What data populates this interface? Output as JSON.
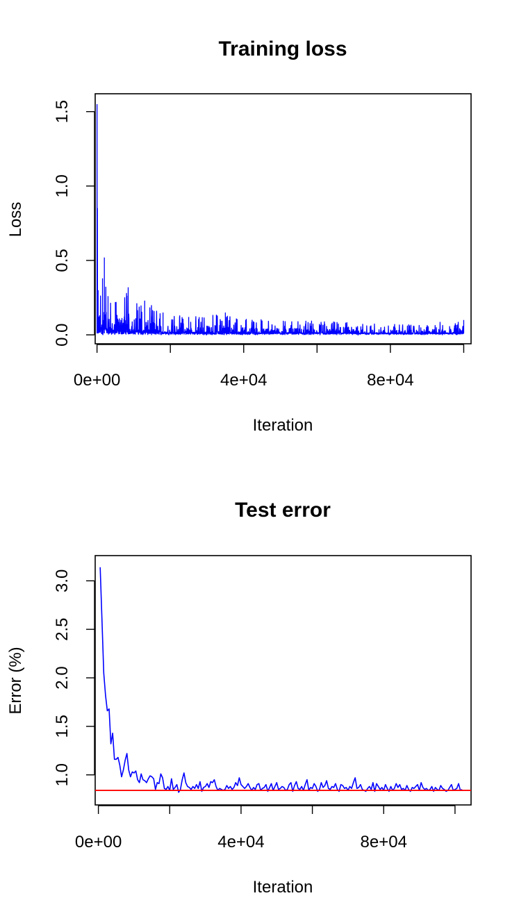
{
  "chart_data": [
    {
      "type": "line",
      "title": "Training loss",
      "xlabel": "Iteration",
      "ylabel": "Loss",
      "xlim": [
        -500,
        102000
      ],
      "ylim": [
        -0.06,
        1.62
      ],
      "x_ticks": [
        0,
        20000,
        40000,
        60000,
        80000,
        100000
      ],
      "x_tick_labels": [
        "0e+00",
        "",
        "4e+04",
        "",
        "8e+04",
        ""
      ],
      "y_ticks": [
        0.0,
        0.5,
        1.0,
        1.5
      ],
      "y_tick_labels": [
        "0.0",
        "0.5",
        "1.0",
        "1.5"
      ],
      "series": [
        {
          "color": "#0000ff",
          "x_start": 0,
          "x_end": 100000,
          "point_count": 2000,
          "peaks": [
            {
              "x": 0,
              "y": 1.55
            },
            {
              "x": 100,
              "y": 0.85
            },
            {
              "x": 300,
              "y": 0.3
            },
            {
              "x": 1500,
              "y": 0.38
            },
            {
              "x": 2000,
              "y": 0.52
            },
            {
              "x": 3000,
              "y": 0.26
            },
            {
              "x": 5000,
              "y": 0.22
            },
            {
              "x": 8500,
              "y": 0.32
            },
            {
              "x": 13000,
              "y": 0.23
            },
            {
              "x": 18000,
              "y": 0.15
            },
            {
              "x": 25000,
              "y": 0.12
            },
            {
              "x": 35000,
              "y": 0.15
            },
            {
              "x": 38000,
              "y": 0.11
            },
            {
              "x": 62000,
              "y": 0.09
            },
            {
              "x": 85000,
              "y": 0.07
            },
            {
              "x": 100000,
              "y": 0.1
            }
          ]
        }
      ],
      "grid": false,
      "legend": "none"
    },
    {
      "type": "line",
      "title": "Test error",
      "xlabel": "Iteration",
      "ylabel": "Error (%)",
      "xlim": [
        -900,
        104500
      ],
      "ylim": [
        0.69,
        3.26
      ],
      "x_ticks": [
        0,
        20000,
        40000,
        60000,
        80000,
        100000
      ],
      "x_tick_labels": [
        "0e+00",
        "",
        "4e+04",
        "",
        "8e+04",
        ""
      ],
      "y_ticks": [
        1.0,
        1.5,
        2.0,
        2.5,
        3.0
      ],
      "y_tick_labels": [
        "1.0",
        "1.5",
        "2.0",
        "2.5",
        "3.0"
      ],
      "series": [
        {
          "color": "#0000ff",
          "x_step": 500,
          "values": [
            3.14,
            2.6,
            2.05,
            1.82,
            1.66,
            1.68,
            1.32,
            1.43,
            1.16,
            1.16,
            1.18,
            1.1,
            0.98,
            1.05,
            1.15,
            1.22,
            1.05,
            0.98,
            1.03,
            1.02,
            1.04,
            0.95,
            0.92,
            1.01,
            0.95,
            0.94,
            0.92,
            0.96,
            0.99,
            0.98,
            0.96,
            0.85,
            0.92,
            0.91,
            1.01,
            0.97,
            0.86,
            0.85,
            0.88,
            0.84,
            0.96,
            0.85,
            0.87,
            0.9,
            0.82,
            0.85,
            0.95,
            1.02,
            0.92,
            0.88,
            0.87,
            0.85,
            0.88,
            0.86,
            0.9,
            0.86,
            0.93,
            0.83,
            0.87,
            0.88,
            0.91,
            0.87,
            0.93,
            0.92,
            0.95,
            0.88,
            0.84,
            0.86,
            0.85,
            0.84,
            0.85,
            0.89,
            0.86,
            0.88,
            0.85,
            0.87,
            0.92,
            0.89,
            0.97,
            0.9,
            0.88,
            0.86,
            0.88,
            0.91,
            0.87,
            0.84,
            0.87,
            0.85,
            0.9,
            0.91,
            0.84,
            0.86,
            0.87,
            0.9,
            0.83,
            0.87,
            0.91,
            0.84,
            0.88,
            0.92,
            0.85,
            0.86,
            0.88,
            0.87,
            0.84,
            0.85,
            0.9,
            0.92,
            0.83,
            0.89,
            0.93,
            0.86,
            0.85,
            0.88,
            0.84,
            0.9,
            0.95,
            0.84,
            0.87,
            0.86,
            0.91,
            0.88,
            0.83,
            0.85,
            0.92,
            0.87,
            0.89,
            0.94,
            0.86,
            0.85,
            0.88,
            0.87,
            0.91,
            0.85,
            0.83,
            0.9,
            0.89,
            0.86,
            0.87,
            0.84,
            0.88,
            0.86,
            0.92,
            0.97,
            0.86,
            0.87,
            0.9,
            0.85,
            0.84,
            0.83,
            0.86,
            0.88,
            0.85,
            0.92,
            0.83,
            0.91,
            0.88,
            0.85,
            0.87,
            0.84,
            0.9,
            0.86,
            0.83,
            0.88,
            0.84,
            0.86,
            0.91,
            0.87,
            0.9,
            0.85,
            0.86,
            0.84,
            0.89,
            0.85,
            0.83,
            0.87,
            0.86,
            0.88,
            0.9,
            0.84,
            0.92,
            0.87,
            0.85,
            0.86,
            0.84,
            0.85,
            0.88,
            0.83,
            0.87,
            0.85,
            0.84,
            0.89,
            0.86,
            0.85,
            0.83,
            0.84,
            0.87,
            0.9,
            0.84,
            0.85,
            0.86,
            0.91,
            0.84,
            0.85
          ],
          "x_start": 500
        },
        {
          "color": "#ff0000",
          "hline": 0.84
        }
      ],
      "grid": false,
      "legend": "none"
    }
  ]
}
